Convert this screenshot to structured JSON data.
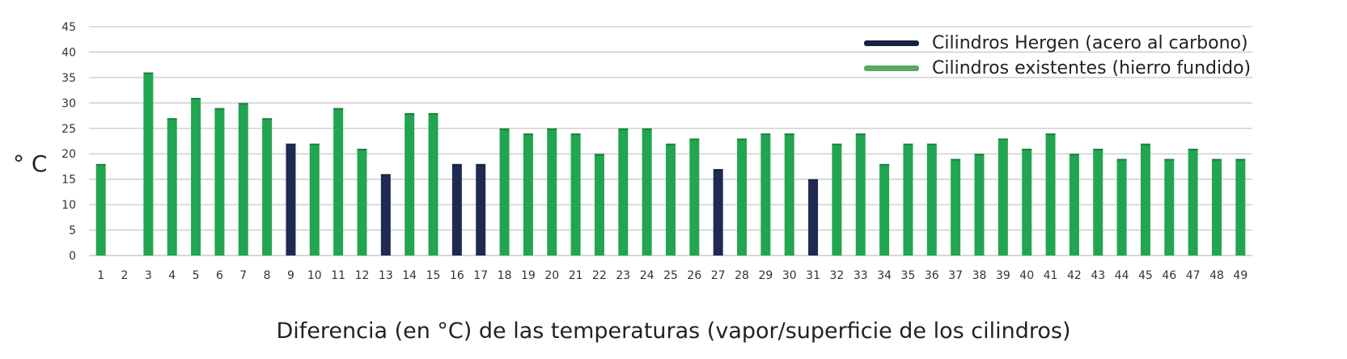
{
  "chart_data": {
    "type": "bar",
    "title": "",
    "ylabel": "° C",
    "xlabel": "Diferencia (en °C) de las temperaturas (vapor/superficie de los cilindros)",
    "ylim": [
      0,
      45
    ],
    "yticks": [
      0,
      5,
      10,
      15,
      20,
      25,
      30,
      35,
      40,
      45
    ],
    "grid": true,
    "legend_position": "top-right",
    "categories": [
      "1",
      "2",
      "3",
      "4",
      "5",
      "6",
      "7",
      "8",
      "9",
      "10",
      "11",
      "12",
      "13",
      "14",
      "15",
      "16",
      "17",
      "18",
      "19",
      "20",
      "21",
      "22",
      "23",
      "24",
      "25",
      "26",
      "27",
      "28",
      "29",
      "30",
      "31",
      "32",
      "33",
      "34",
      "35",
      "36",
      "37",
      "38",
      "39",
      "40",
      "41",
      "42",
      "43",
      "44",
      "45",
      "46",
      "47",
      "48",
      "49"
    ],
    "values": [
      18,
      null,
      36,
      27,
      31,
      29,
      30,
      27,
      22,
      22,
      29,
      21,
      16,
      28,
      28,
      18,
      18,
      25,
      24,
      25,
      24,
      20,
      25,
      25,
      22,
      23,
      17,
      23,
      24,
      24,
      15,
      22,
      24,
      18,
      22,
      22,
      19,
      20,
      23,
      21,
      24,
      20,
      21,
      19,
      22,
      19,
      21,
      19,
      19
    ],
    "bar_series": [
      "existentes",
      null,
      "existentes",
      "existentes",
      "existentes",
      "existentes",
      "existentes",
      "existentes",
      "hergen",
      "existentes",
      "existentes",
      "existentes",
      "hergen",
      "existentes",
      "existentes",
      "hergen",
      "hergen",
      "existentes",
      "existentes",
      "existentes",
      "existentes",
      "existentes",
      "existentes",
      "existentes",
      "existentes",
      "existentes",
      "hergen",
      "existentes",
      "existentes",
      "existentes",
      "hergen",
      "existentes",
      "existentes",
      "existentes",
      "existentes",
      "existentes",
      "existentes",
      "existentes",
      "existentes",
      "existentes",
      "existentes",
      "existentes",
      "existentes",
      "existentes",
      "existentes",
      "existentes",
      "existentes",
      "existentes",
      "existentes"
    ],
    "series": [
      {
        "key": "hergen",
        "name": "Cilindros Hergen (acero al carbono)",
        "color": "#1f2a52",
        "legend_color": "#14233c"
      },
      {
        "key": "existentes",
        "name": "Cilindros existentes (hierro fundido)",
        "color": "#22a550",
        "legend_color": "#5aa85e"
      }
    ]
  }
}
